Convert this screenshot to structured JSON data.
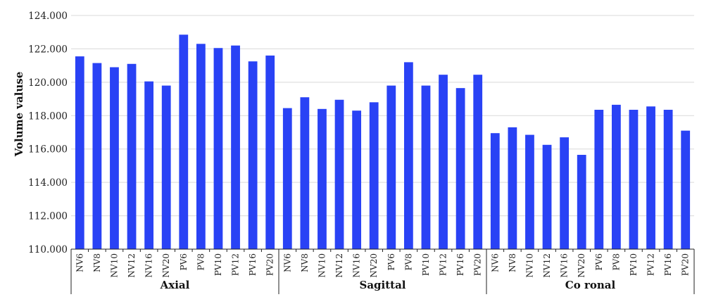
{
  "chart_data": {
    "type": "bar",
    "ylabel": "Volume valuse",
    "xlabel": "",
    "ylim": [
      110000,
      124000
    ],
    "yticks": [
      110000,
      112000,
      114000,
      116000,
      118000,
      120000,
      122000,
      124000
    ],
    "ytick_labels": [
      "110.000",
      "112.000",
      "114.000",
      "116.000",
      "118.000",
      "120.000",
      "122.000",
      "124.000"
    ],
    "grid": true,
    "bar_color": "#2942f5",
    "groups": [
      {
        "label": "Axial",
        "categories": [
          "NV6",
          "NV8",
          "NV10",
          "NV12",
          "NV16",
          "NV20",
          "PV6",
          "PV8",
          "PV10",
          "PV12",
          "PV16",
          "PV20"
        ],
        "values": [
          121550,
          121150,
          120900,
          121100,
          120050,
          119800,
          122850,
          122300,
          122050,
          122200,
          121250,
          121600
        ]
      },
      {
        "label": "Sagittal",
        "categories": [
          "NV6",
          "NV8",
          "NV10",
          "NV12",
          "NV16",
          "NV20",
          "PV6",
          "PV8",
          "PV10",
          "PV12",
          "PV16",
          "PV20"
        ],
        "values": [
          118450,
          119100,
          118400,
          118950,
          118300,
          118800,
          119800,
          121200,
          119800,
          120450,
          119650,
          120450
        ]
      },
      {
        "label": "Co ronal",
        "categories": [
          "NV6",
          "NV8",
          "NV10",
          "NV12",
          "NV16",
          "NV20",
          "PV6",
          "PV8",
          "PV10",
          "PV12",
          "PV16",
          "PV20"
        ],
        "values": [
          116950,
          117300,
          116850,
          116250,
          116700,
          115650,
          118350,
          118650,
          118350,
          118550,
          118350,
          117100
        ]
      }
    ]
  }
}
